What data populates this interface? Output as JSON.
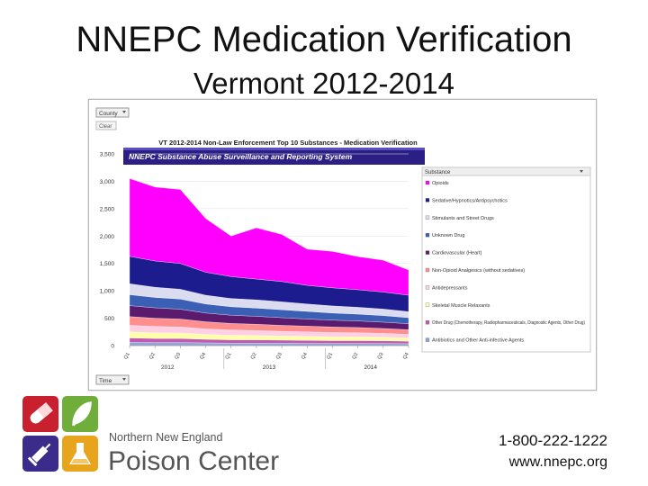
{
  "slide": {
    "title": "NNEPC Medication Verification",
    "subtitle": "Vermont 2012-2014",
    "phone": "1-800-222-1222",
    "website": "www.nnepc.org"
  },
  "logo": {
    "line1": "Northern New England",
    "line2": "Poison Center",
    "tile_colors": [
      "#c8202f",
      "#6fae3a",
      "#3b2b8a",
      "#e8a41d"
    ],
    "icons": [
      "pill-icon",
      "leaf-icon",
      "syringe-icon",
      "flask-icon"
    ]
  },
  "controls": {
    "county": "County",
    "clear": "Clear",
    "time": "Time"
  },
  "chart_data": {
    "type": "area",
    "stacked": true,
    "title": "VT 2012-2014 Non-Law Enforcement Top 10 Substances - Medication Verification",
    "banner": "NNEPC Substance Abuse Surveillance and Reporting System",
    "legend_title": "Substance",
    "legend_position": "right",
    "ylim": [
      0,
      3500
    ],
    "y_ticks": [
      "0",
      "500",
      "1,000",
      "1,500",
      "2,000",
      "2,500",
      "3,000",
      "3,500"
    ],
    "x": [
      "Q1",
      "Q2",
      "Q3",
      "Q4",
      "Q1",
      "Q2",
      "Q3",
      "Q4",
      "Q1",
      "Q2",
      "Q3",
      "Q4"
    ],
    "x_groups": [
      {
        "label": "2012",
        "start": 0,
        "end": 3
      },
      {
        "label": "2013",
        "start": 4,
        "end": 7
      },
      {
        "label": "2014",
        "start": 8,
        "end": 11
      }
    ],
    "series": [
      {
        "name": "Antibiotics and Other Anti-infective Agents",
        "color": "#8fa6d8",
        "values": [
          60,
          55,
          55,
          50,
          45,
          45,
          45,
          40,
          40,
          40,
          38,
          35
        ]
      },
      {
        "name": "Other Drug (Chemotherapy, Radiopharmaceuticals, Diagnostic Agents, Other Drug)",
        "color": "#c05ab0",
        "values": [
          80,
          75,
          75,
          65,
          60,
          60,
          55,
          55,
          50,
          50,
          50,
          45
        ]
      },
      {
        "name": "Skeletal Muscle Relaxants",
        "color": "#ffffa8",
        "values": [
          110,
          105,
          100,
          90,
          85,
          80,
          75,
          75,
          70,
          70,
          65,
          60
        ]
      },
      {
        "name": "Antidepressants",
        "color": "#ffcfe6",
        "values": [
          120,
          115,
          110,
          100,
          95,
          90,
          85,
          80,
          80,
          75,
          70,
          65
        ]
      },
      {
        "name": "Non-Opioid Analgesics (without sedatives)",
        "color": "#ff8f8f",
        "values": [
          160,
          150,
          145,
          130,
          120,
          115,
          110,
          105,
          100,
          95,
          90,
          85
        ]
      },
      {
        "name": "Cardiovascular (Heart)",
        "color": "#5a1a6e",
        "values": [
          200,
          190,
          180,
          160,
          150,
          145,
          140,
          130,
          125,
          120,
          115,
          110
        ]
      },
      {
        "name": "Unknown Drug",
        "color": "#3a5fb5",
        "values": [
          200,
          190,
          185,
          165,
          155,
          150,
          145,
          140,
          130,
          125,
          120,
          110
        ]
      },
      {
        "name": "Stimulants and Street Drugs",
        "color": "#dcdcf0",
        "values": [
          200,
          185,
          180,
          160,
          150,
          150,
          145,
          135,
          130,
          125,
          120,
          110
        ]
      },
      {
        "name": "Sedative/Hypnotics/Antipsychotics",
        "color": "#1c1c8e",
        "values": [
          500,
          480,
          470,
          420,
          400,
          380,
          370,
          340,
          330,
          320,
          310,
          300
        ]
      },
      {
        "name": "Opioids",
        "color": "#ff00ff",
        "values": [
          1420,
          1350,
          1350,
          980,
          740,
          935,
          860,
          660,
          665,
          605,
          580,
          460
        ]
      }
    ]
  }
}
